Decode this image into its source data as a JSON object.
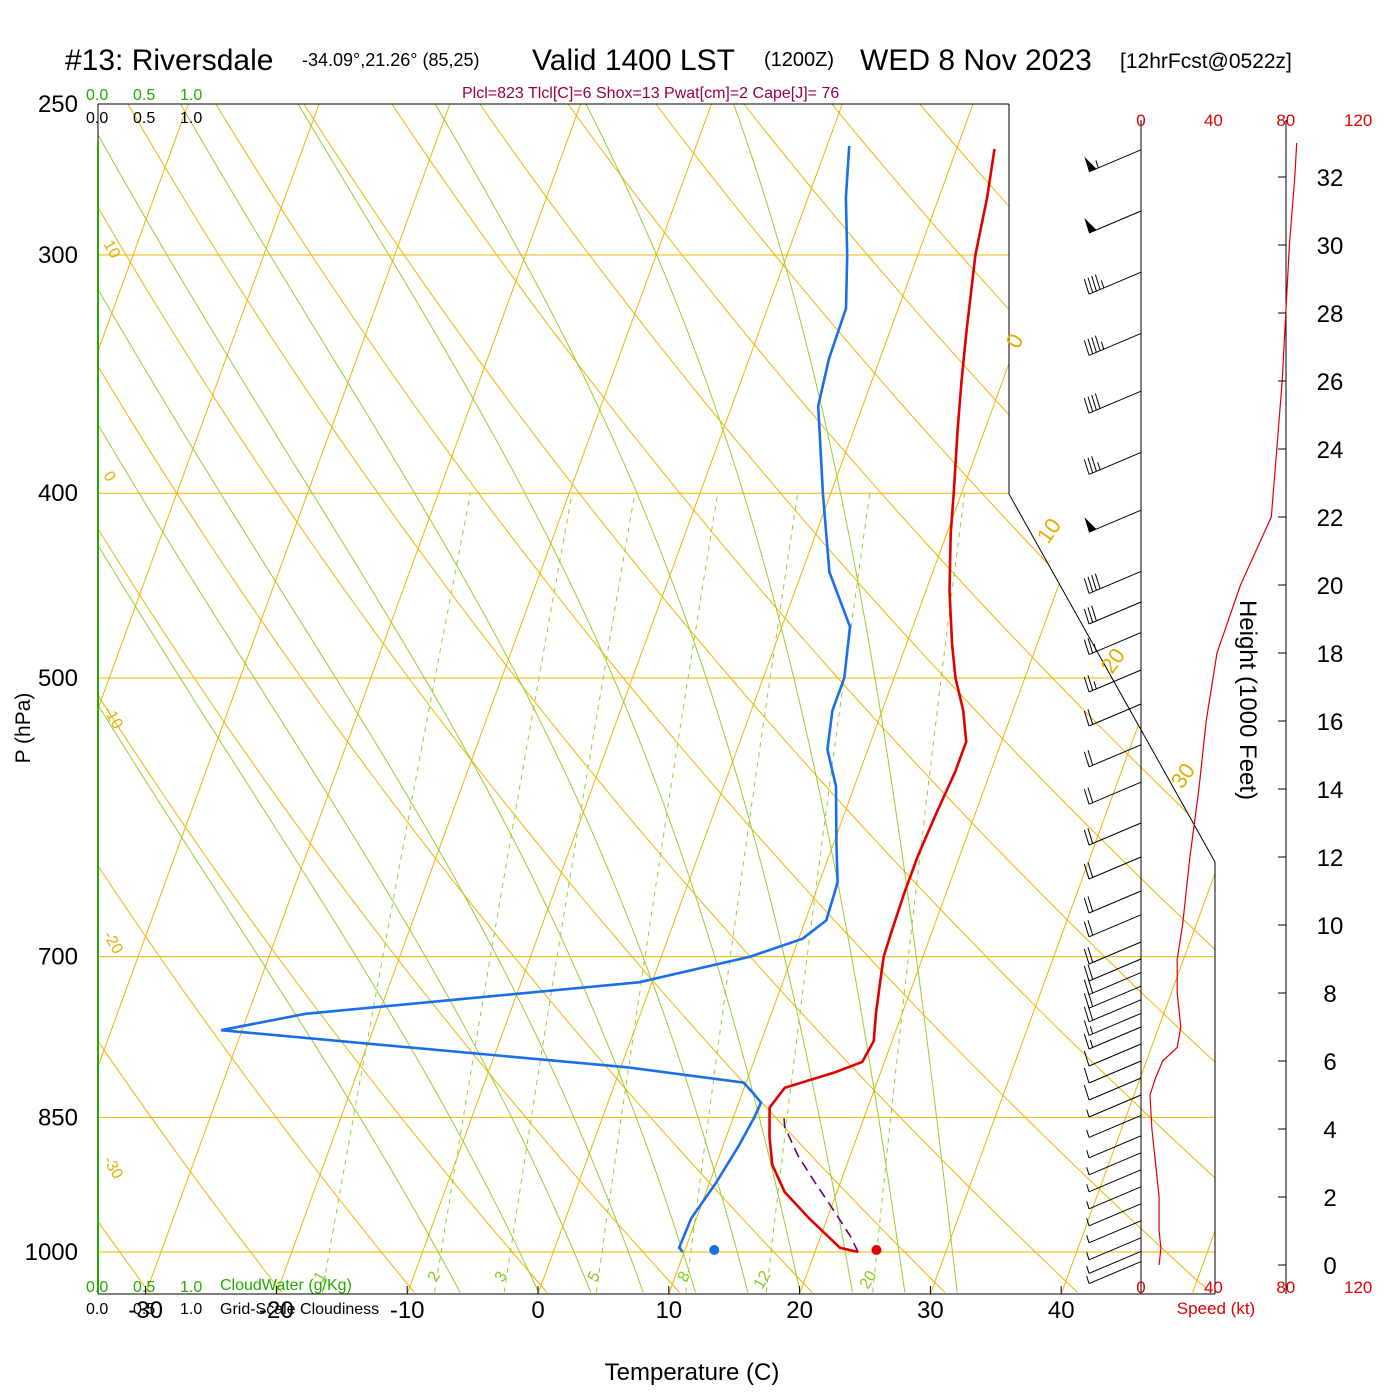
{
  "header": {
    "station": "#13: Riversdale",
    "coords": "-34.09°,21.26° (85,25)",
    "valid": "Valid 1400 LST",
    "zulu": "(1200Z)",
    "date": "WED 8 Nov 2023",
    "forecast": "[12hrFcst@0522z]"
  },
  "indices": "Plcl=823 Tlcl[C]=6 Shox=13 Pwat[cm]=2 Cape[J]= 76",
  "cloud_scale": {
    "top_green": [
      "0.0",
      "0.5",
      "1.0"
    ],
    "top_black": [
      "0.0",
      "0.5",
      "1.0"
    ],
    "bottom_green": [
      "0.0",
      "0.5",
      "1.0"
    ],
    "bottom_black": [
      "0.0",
      "0.5",
      "1.0"
    ],
    "cloudwater_label": "CloudWater (g/Kg)",
    "cloudiness_label": "Grid-Scale Cloudiness"
  },
  "axes": {
    "xlabel": "Temperature (C)",
    "ylabel": "P (hPa)",
    "height_label": "Height (1000 Feet)",
    "speed_label": "Speed (kt)"
  },
  "colors": {
    "temperature": "#e00000",
    "dewpoint": "#1a6ee8",
    "isotherm": "#f0b400",
    "dry_adiabat": "#f0b400",
    "moist_adiabat": "#99cc33",
    "mixing_ratio": "#99cc33",
    "parcel": "#660066",
    "wind_speed": "#e00000",
    "cloud_axis": "#22aa00"
  },
  "chart_data": {
    "type": "line",
    "skew_t": true,
    "x_ticks": [
      "-30",
      "-20",
      "-10",
      "0",
      "10",
      "20",
      "30",
      "40"
    ],
    "y_ticks": [
      "250",
      "300",
      "400",
      "500",
      "700",
      "850",
      "1000"
    ],
    "height_ticks": [
      "0",
      "2",
      "4",
      "6",
      "8",
      "10",
      "12",
      "14",
      "16",
      "18",
      "20",
      "22",
      "24",
      "26",
      "28",
      "30",
      "32"
    ],
    "speed_ticks_top": [
      "0",
      "40",
      "80",
      "120"
    ],
    "speed_ticks_bottom": [
      "0",
      "40",
      "80",
      "120"
    ],
    "dry_adiabat_labels": [
      "10",
      "0",
      "-10",
      "-20",
      "-30",
      "0",
      "10",
      "20",
      "30"
    ],
    "mixing_ratio_labels": [
      "1",
      "2",
      "3",
      "5",
      "8",
      "12",
      "20"
    ],
    "mixing_ratio_values": [
      1,
      2,
      3,
      5,
      8,
      12,
      20
    ],
    "temperature_profile": {
      "name": "Temperature",
      "points": [
        [
          1000,
          23.3
        ],
        [
          995,
          21.8
        ],
        [
          960,
          18.6
        ],
        [
          930,
          16.0
        ],
        [
          900,
          14.3
        ],
        [
          870,
          13.3
        ],
        [
          840,
          12.5
        ],
        [
          820,
          13.1
        ],
        [
          805,
          16.5
        ],
        [
          795,
          18.3
        ],
        [
          775,
          18.6
        ],
        [
          750,
          18.0
        ],
        [
          715,
          17.3
        ],
        [
          700,
          17.0
        ],
        [
          680,
          16.9
        ],
        [
          650,
          16.8
        ],
        [
          620,
          16.8
        ],
        [
          590,
          17.0
        ],
        [
          560,
          17.3
        ],
        [
          540,
          17.3
        ],
        [
          520,
          16.2
        ],
        [
          500,
          14.7
        ],
        [
          480,
          13.5
        ],
        [
          450,
          11.8
        ],
        [
          420,
          10.3
        ],
        [
          400,
          9.4
        ],
        [
          370,
          7.9
        ],
        [
          350,
          6.9
        ],
        [
          330,
          5.9
        ],
        [
          300,
          4.4
        ],
        [
          280,
          3.7
        ],
        [
          264,
          2.9
        ]
      ]
    },
    "dewpoint_profile": {
      "name": "Dewpoint",
      "points": [
        [
          1000,
          9.9
        ],
        [
          995,
          9.5
        ],
        [
          960,
          9.6
        ],
        [
          920,
          10.5
        ],
        [
          880,
          11.2
        ],
        [
          850,
          11.6
        ],
        [
          835,
          11.7
        ],
        [
          825,
          10.8
        ],
        [
          815,
          9.8
        ],
        [
          800,
          0.4
        ],
        [
          765,
          -31.6
        ],
        [
          750,
          -25.6
        ],
        [
          722,
          -1.0
        ],
        [
          700,
          6.8
        ],
        [
          685,
          10.3
        ],
        [
          670,
          11.6
        ],
        [
          640,
          11.4
        ],
        [
          610,
          10.2
        ],
        [
          570,
          8.6
        ],
        [
          545,
          6.9
        ],
        [
          520,
          6.2
        ],
        [
          500,
          6.2
        ],
        [
          470,
          5.2
        ],
        [
          440,
          2.1
        ],
        [
          400,
          -0.6
        ],
        [
          360,
          -3.4
        ],
        [
          340,
          -3.9
        ],
        [
          320,
          -4.0
        ],
        [
          300,
          -5.4
        ],
        [
          280,
          -7.1
        ],
        [
          263,
          -8.3
        ]
      ]
    },
    "parcel_profile": {
      "name": "Parcel",
      "points": [
        [
          1000,
          23.3
        ],
        [
          980,
          22.2
        ],
        [
          950,
          20.2
        ],
        [
          920,
          18.1
        ],
        [
          890,
          16.0
        ],
        [
          860,
          14.2
        ],
        [
          845,
          13.7
        ]
      ]
    },
    "surface_temperature": 24.7,
    "surface_dewpoint": 12.3,
    "wind_speed_profile": {
      "name": "Wind speed",
      "points": [
        [
          0.0,
          10
        ],
        [
          0.5,
          11
        ],
        [
          1.0,
          10
        ],
        [
          2.0,
          10
        ],
        [
          3.0,
          8
        ],
        [
          4.0,
          6
        ],
        [
          5.0,
          5
        ],
        [
          5.5,
          8
        ],
        [
          6.0,
          12
        ],
        [
          6.4,
          20
        ],
        [
          7.0,
          22
        ],
        [
          8.0,
          20
        ],
        [
          9.0,
          20
        ],
        [
          10.0,
          23
        ],
        [
          12.0,
          27
        ],
        [
          14.0,
          32
        ],
        [
          16.0,
          36
        ],
        [
          18.0,
          42
        ],
        [
          20.0,
          55
        ],
        [
          22.0,
          72
        ],
        [
          24.0,
          75
        ],
        [
          26.0,
          78
        ],
        [
          28.0,
          80
        ],
        [
          30.0,
          82
        ],
        [
          32.0,
          85
        ],
        [
          33.0,
          86
        ]
      ]
    },
    "wind_barbs": [
      {
        "height": 32.8,
        "speed": 55
      },
      {
        "height": 31.0,
        "speed": 50
      },
      {
        "height": 29.2,
        "speed": 45
      },
      {
        "height": 27.4,
        "speed": 45
      },
      {
        "height": 25.7,
        "speed": 40
      },
      {
        "height": 23.9,
        "speed": 35
      },
      {
        "height": 22.2,
        "speed": 50
      },
      {
        "height": 20.4,
        "speed": 40
      },
      {
        "height": 19.5,
        "speed": 30
      },
      {
        "height": 18.6,
        "speed": 25
      },
      {
        "height": 17.5,
        "speed": 25
      },
      {
        "height": 16.5,
        "speed": 20
      },
      {
        "height": 15.3,
        "speed": 20
      },
      {
        "height": 14.2,
        "speed": 20
      },
      {
        "height": 13.0,
        "speed": 20
      },
      {
        "height": 12.0,
        "speed": 20
      },
      {
        "height": 11.0,
        "speed": 20
      },
      {
        "height": 10.3,
        "speed": 20
      },
      {
        "height": 9.5,
        "speed": 20
      },
      {
        "height": 9.0,
        "speed": 20
      },
      {
        "height": 8.6,
        "speed": 20
      },
      {
        "height": 8.2,
        "speed": 20
      },
      {
        "height": 7.8,
        "speed": 20
      },
      {
        "height": 7.4,
        "speed": 15
      },
      {
        "height": 7.0,
        "speed": 15
      },
      {
        "height": 6.5,
        "speed": 10
      },
      {
        "height": 6.0,
        "speed": 10
      },
      {
        "height": 5.5,
        "speed": 10
      },
      {
        "height": 5.0,
        "speed": 5
      },
      {
        "height": 4.4,
        "speed": 5
      },
      {
        "height": 3.8,
        "speed": 5
      },
      {
        "height": 3.3,
        "speed": 5
      },
      {
        "height": 2.8,
        "speed": 5
      },
      {
        "height": 2.3,
        "speed": 5
      },
      {
        "height": 1.8,
        "speed": 5
      },
      {
        "height": 1.3,
        "speed": 5
      },
      {
        "height": 0.8,
        "speed": 5
      },
      {
        "height": 0.4,
        "speed": 5
      },
      {
        "height": 0.1,
        "speed": 5
      }
    ]
  }
}
